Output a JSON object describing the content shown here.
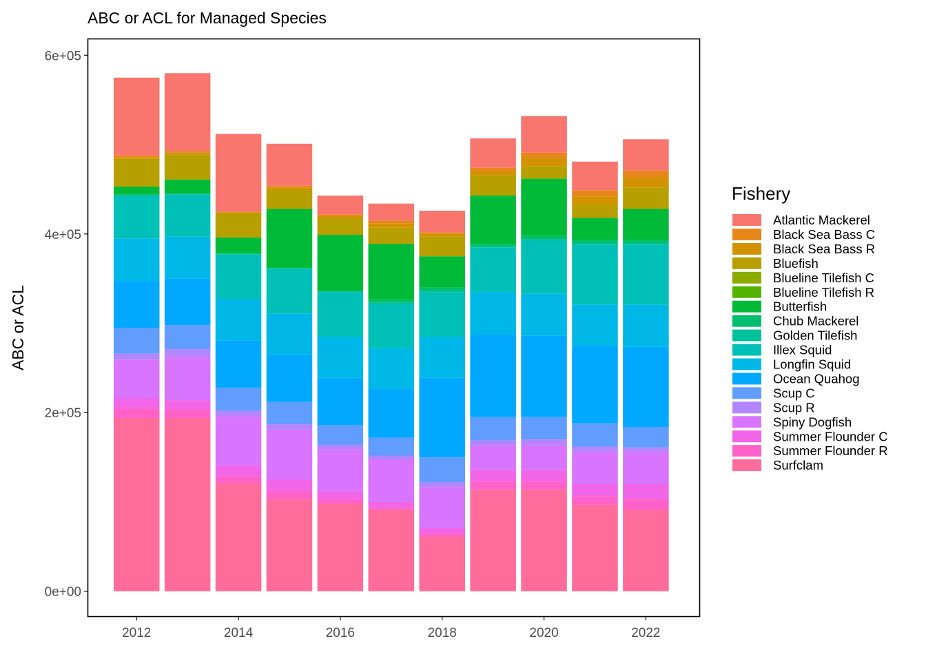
{
  "chart_data": {
    "type": "bar",
    "stacked": true,
    "title": "ABC or ACL for Managed Species",
    "xlabel": "",
    "ylabel": "ABC or ACL",
    "x": [
      2012,
      2013,
      2014,
      2015,
      2016,
      2017,
      2018,
      2019,
      2020,
      2021,
      2022
    ],
    "xticks": [
      "2012",
      "2014",
      "2016",
      "2018",
      "2020",
      "2022"
    ],
    "xtick_values": [
      2012,
      2014,
      2016,
      2018,
      2020,
      2022
    ],
    "yticks": [
      "0e+00",
      "2e+05",
      "4e+05",
      "6e+05"
    ],
    "ytick_values": [
      0,
      200000,
      400000,
      600000
    ],
    "xlim": [
      2011.05,
      2023.05
    ],
    "ylim": [
      -28000,
      618000
    ],
    "grid": false,
    "legend_title": "Fishery",
    "legend_position": "right",
    "series": [
      {
        "name": "Surfclam",
        "color": "#FF6C9C",
        "values": [
          194000,
          194000,
          121000,
          103000,
          98000,
          91000,
          61000,
          114000,
          114000,
          97000,
          91000
        ]
      },
      {
        "name": "Summer Flounder R",
        "color": "#FF61C9",
        "values": [
          11000,
          10000,
          8000,
          9000,
          5000,
          3000,
          4000,
          9000,
          9000,
          9000,
          12000
        ]
      },
      {
        "name": "Summer Flounder C",
        "color": "#F166E8",
        "values": [
          11000,
          10000,
          12000,
          13000,
          9000,
          6000,
          6000,
          13000,
          13000,
          14000,
          17000
        ]
      },
      {
        "name": "Spiny Dogfish",
        "color": "#D874FD",
        "values": [
          43000,
          48000,
          55000,
          56000,
          47000,
          47000,
          45000,
          27000,
          28000,
          36000,
          36000
        ]
      },
      {
        "name": "Scup R",
        "color": "#B385FF",
        "values": [
          7000,
          9000,
          6000,
          6000,
          5000,
          5000,
          6000,
          6000,
          6000,
          6000,
          5000
        ]
      },
      {
        "name": "Scup C",
        "color": "#619CFF",
        "values": [
          29000,
          27000,
          26000,
          25000,
          22000,
          20000,
          28000,
          26000,
          25000,
          26000,
          23000
        ]
      },
      {
        "name": "Ocean Quahog",
        "color": "#00A9FF",
        "values": [
          52000,
          52000,
          53000,
          53000,
          53000,
          54000,
          89000,
          93000,
          91000,
          87000,
          90000
        ]
      },
      {
        "name": "Longfin Squid",
        "color": "#00B8E7",
        "values": [
          48000,
          47000,
          46000,
          46000,
          46000,
          46000,
          46000,
          47000,
          47000,
          46000,
          47000
        ]
      },
      {
        "name": "Illex Squid",
        "color": "#00C0B8",
        "values": [
          48000,
          47000,
          50000,
          50000,
          50000,
          50000,
          50000,
          50000,
          60000,
          67000,
          67000
        ]
      },
      {
        "name": "Golden Tilefish",
        "color": "#00C19A",
        "values": [
          1000,
          1000,
          1000,
          1000,
          1000,
          1000,
          1000,
          1000,
          1000,
          1000,
          1000
        ]
      },
      {
        "name": "Chub Mackerel",
        "color": "#00BE70",
        "values": [
          0,
          0,
          0,
          0,
          0,
          3000,
          4000,
          2000,
          4000,
          4000,
          4000
        ]
      },
      {
        "name": "Butterfish",
        "color": "#00BA38",
        "values": [
          9000,
          16000,
          18000,
          66000,
          63000,
          63000,
          35000,
          55000,
          64000,
          25000,
          35000
        ]
      },
      {
        "name": "Blueline Tilefish R",
        "color": "#53B400",
        "values": [
          0,
          0,
          0,
          0,
          0,
          0,
          0,
          0,
          0,
          0,
          0
        ]
      },
      {
        "name": "Blueline Tilefish C",
        "color": "#8EAB00",
        "values": [
          0,
          0,
          0,
          0,
          0,
          0,
          0,
          0,
          0,
          0,
          0
        ]
      },
      {
        "name": "Bluefish",
        "color": "#B79F00",
        "values": [
          31000,
          28000,
          27000,
          22000,
          19000,
          18000,
          22000,
          23000,
          14000,
          15000,
          24000
        ]
      },
      {
        "name": "Black Sea Bass R",
        "color": "#D39200",
        "values": [
          2000,
          2000,
          1000,
          2000,
          2000,
          5000,
          3000,
          4000,
          9000,
          9000,
          11000
        ]
      },
      {
        "name": "Black Sea Bass C",
        "color": "#E7861B",
        "values": [
          2000,
          2000,
          1000,
          2000,
          2000,
          3000,
          2000,
          4000,
          6000,
          7000,
          8000
        ]
      },
      {
        "name": "Atlantic Mackerel",
        "color": "#F8766D",
        "values": [
          87000,
          87000,
          87000,
          47000,
          21000,
          19000,
          24000,
          33000,
          41000,
          32000,
          35000
        ]
      }
    ]
  }
}
